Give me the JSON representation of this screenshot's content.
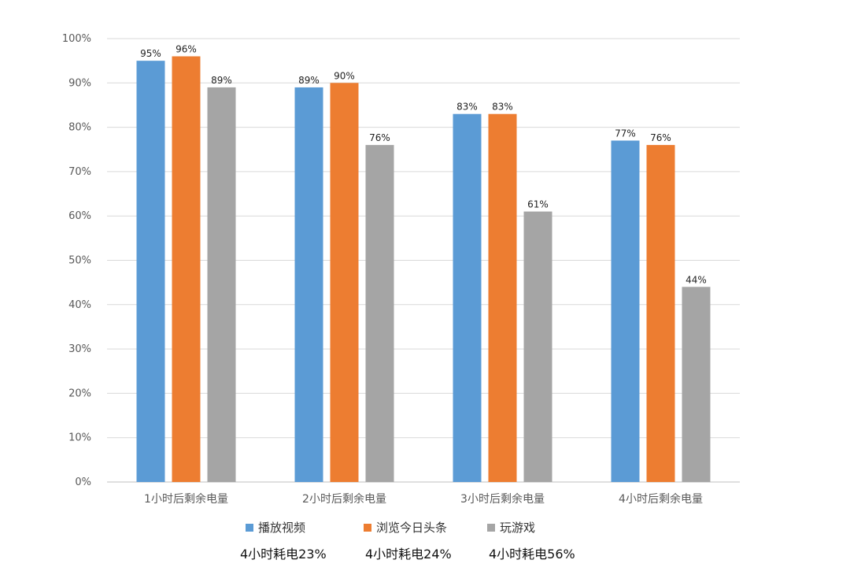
{
  "chart_data": {
    "type": "bar",
    "categories": [
      "1小时后剩余电量",
      "2小时后剩余电量",
      "3小时后剩余电量",
      "4小时后剩余电量"
    ],
    "series": [
      {
        "name": "播放视频",
        "values": [
          95,
          89,
          83,
          77
        ],
        "labels": [
          "95%",
          "89%",
          "83%",
          "77%"
        ],
        "color": "#5B9BD5"
      },
      {
        "name": "浏览今日头条",
        "values": [
          96,
          90,
          83,
          76
        ],
        "labels": [
          "96%",
          "90%",
          "83%",
          "76%"
        ],
        "color": "#ED7D31"
      },
      {
        "name": "玩游戏",
        "values": [
          89,
          76,
          61,
          44
        ],
        "labels": [
          "89%",
          "76%",
          "61%",
          "44%"
        ],
        "color": "#A5A5A5"
      }
    ],
    "yticks": [
      "0%",
      "10%",
      "20%",
      "30%",
      "40%",
      "50%",
      "60%",
      "70%",
      "80%",
      "90%",
      "100%"
    ],
    "ylim": [
      0,
      100
    ],
    "grid": true,
    "legend_position": "bottom",
    "footnotes": [
      "4小时耗电23%",
      "4小时耗电24%",
      "4小时耗电56%"
    ],
    "gridline_color": "#D9D9D9"
  }
}
